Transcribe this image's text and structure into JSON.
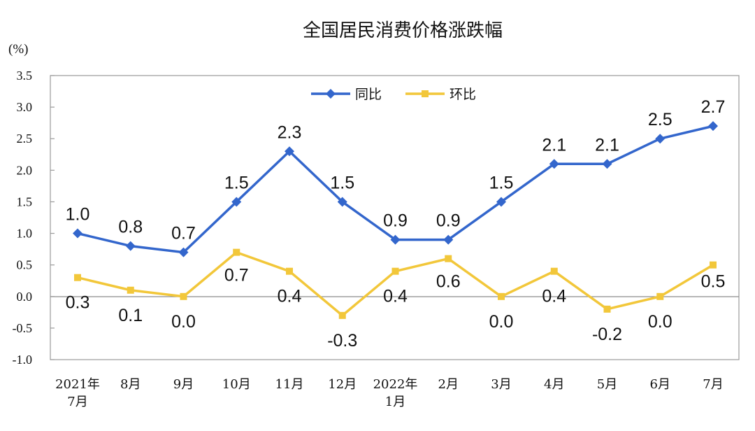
{
  "chart_data": {
    "type": "line",
    "title": "全国居民消费价格涨跌幅",
    "unit": "(%)",
    "categories": [
      "2021年\n7月",
      "8月",
      "9月",
      "10月",
      "11月",
      "12月",
      "2022年\n1月",
      "2月",
      "3月",
      "4月",
      "5月",
      "6月",
      "7月"
    ],
    "ylim": [
      -1.0,
      3.5
    ],
    "yticks": [
      "3.5",
      "3.0",
      "2.5",
      "2.0",
      "1.5",
      "1.0",
      "0.5",
      "0.0",
      "-0.5",
      "-1.0"
    ],
    "ytick_values": [
      3.5,
      3.0,
      2.5,
      2.0,
      1.5,
      1.0,
      0.5,
      0.0,
      -0.5,
      -1.0
    ],
    "grid": false,
    "legend_position": "top-center",
    "series": [
      {
        "name": "同比",
        "color": "#3366CC",
        "marker": "diamond",
        "values": [
          1.0,
          0.8,
          0.7,
          1.5,
          2.3,
          1.5,
          0.9,
          0.9,
          1.5,
          2.1,
          2.1,
          2.5,
          2.7
        ],
        "labels": [
          "1.0",
          "0.8",
          "0.7",
          "1.5",
          "2.3",
          "1.5",
          "0.9",
          "0.9",
          "1.5",
          "2.1",
          "2.1",
          "2.5",
          "2.7"
        ]
      },
      {
        "name": "环比",
        "color": "#F2C73A",
        "marker": "square",
        "values": [
          0.3,
          0.1,
          0.0,
          0.7,
          0.4,
          -0.3,
          0.4,
          0.6,
          0.0,
          0.4,
          -0.2,
          0.0,
          0.5
        ],
        "labels": [
          "0.3",
          "0.1",
          "0.0",
          "0.7",
          "0.4",
          "-0.3",
          "0.4",
          "0.6",
          "0.0",
          "0.4",
          "-0.2",
          "0.0",
          "0.5"
        ]
      }
    ]
  }
}
